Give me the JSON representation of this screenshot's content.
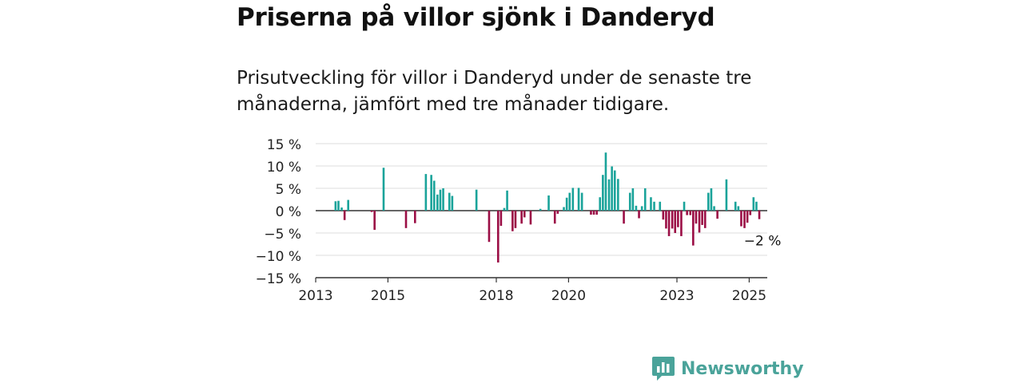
{
  "header": {
    "title": "Priserna på villor sjönk i Danderyd",
    "subtitle": "Prisutveckling för villor i Danderyd under de senaste tre månaderna, jämfört med tre månader tidigare."
  },
  "brand": {
    "name": "Newsworthy",
    "icon": "newsworthy-logo-icon",
    "color": "#4aa39a"
  },
  "colors": {
    "positive": "#1aa39a",
    "negative": "#9b0e45",
    "grid": "#dddddd",
    "axis": "#333333"
  },
  "chart_data": {
    "type": "bar",
    "y_unit": "%",
    "ylim": [
      -15,
      15
    ],
    "y_ticks": [
      {
        "value": 15,
        "label": "15 %"
      },
      {
        "value": 10,
        "label": "10 %"
      },
      {
        "value": 5,
        "label": "5 %"
      },
      {
        "value": 0,
        "label": "0 %"
      },
      {
        "value": -5,
        "label": "−5 %"
      },
      {
        "value": -10,
        "label": "−10 %"
      },
      {
        "value": -15,
        "label": "−15 %"
      }
    ],
    "x_ticks": [
      {
        "value": 2013,
        "label": "2013"
      },
      {
        "value": 2015,
        "label": "2015"
      },
      {
        "value": 2018,
        "label": "2018"
      },
      {
        "value": 2020,
        "label": "2020"
      },
      {
        "value": 2023,
        "label": "2023"
      },
      {
        "value": 2025,
        "label": "2025"
      }
    ],
    "xlim": [
      2013,
      2025.5
    ],
    "grid": true,
    "last_value_label": "−2 %",
    "points": [
      {
        "x": 2013.55,
        "y": 2.1
      },
      {
        "x": 2013.63,
        "y": 2.2
      },
      {
        "x": 2013.72,
        "y": 0.7
      },
      {
        "x": 2013.8,
        "y": -2.1
      },
      {
        "x": 2013.9,
        "y": 2.4
      },
      {
        "x": 2014.55,
        "y": -0.3
      },
      {
        "x": 2014.63,
        "y": -4.3
      },
      {
        "x": 2014.88,
        "y": 9.6
      },
      {
        "x": 2015.5,
        "y": -3.9
      },
      {
        "x": 2015.75,
        "y": -2.8
      },
      {
        "x": 2016.05,
        "y": 8.2
      },
      {
        "x": 2016.2,
        "y": 8.0
      },
      {
        "x": 2016.28,
        "y": 6.7
      },
      {
        "x": 2016.37,
        "y": 3.6
      },
      {
        "x": 2016.45,
        "y": 4.7
      },
      {
        "x": 2016.53,
        "y": 5.0
      },
      {
        "x": 2016.7,
        "y": 4.0
      },
      {
        "x": 2016.78,
        "y": 3.3
      },
      {
        "x": 2017.45,
        "y": 4.7
      },
      {
        "x": 2017.8,
        "y": -7.0
      },
      {
        "x": 2018.05,
        "y": -11.6
      },
      {
        "x": 2018.13,
        "y": -3.4
      },
      {
        "x": 2018.22,
        "y": 0.6
      },
      {
        "x": 2018.3,
        "y": 4.5
      },
      {
        "x": 2018.45,
        "y": -4.6
      },
      {
        "x": 2018.53,
        "y": -3.9
      },
      {
        "x": 2018.7,
        "y": -2.9
      },
      {
        "x": 2018.78,
        "y": -1.5
      },
      {
        "x": 2018.95,
        "y": -3.1
      },
      {
        "x": 2019.22,
        "y": 0.4
      },
      {
        "x": 2019.45,
        "y": 3.4
      },
      {
        "x": 2019.62,
        "y": -2.9
      },
      {
        "x": 2019.7,
        "y": -0.7
      },
      {
        "x": 2019.87,
        "y": 0.8
      },
      {
        "x": 2019.95,
        "y": 2.9
      },
      {
        "x": 2020.03,
        "y": 4.0
      },
      {
        "x": 2020.12,
        "y": 5.1
      },
      {
        "x": 2020.28,
        "y": 5.1
      },
      {
        "x": 2020.37,
        "y": 4.0
      },
      {
        "x": 2020.62,
        "y": -0.9
      },
      {
        "x": 2020.7,
        "y": -0.9
      },
      {
        "x": 2020.78,
        "y": -0.9
      },
      {
        "x": 2020.87,
        "y": 3.0
      },
      {
        "x": 2020.95,
        "y": 8.0
      },
      {
        "x": 2021.03,
        "y": 13.0
      },
      {
        "x": 2021.12,
        "y": 7.0
      },
      {
        "x": 2021.2,
        "y": 9.9
      },
      {
        "x": 2021.28,
        "y": 9.0
      },
      {
        "x": 2021.37,
        "y": 7.1
      },
      {
        "x": 2021.53,
        "y": -2.9
      },
      {
        "x": 2021.7,
        "y": 4.0
      },
      {
        "x": 2021.78,
        "y": 5.0
      },
      {
        "x": 2021.87,
        "y": 1.1
      },
      {
        "x": 2021.95,
        "y": -1.7
      },
      {
        "x": 2022.03,
        "y": 1.0
      },
      {
        "x": 2022.12,
        "y": 5.0
      },
      {
        "x": 2022.28,
        "y": 3.0
      },
      {
        "x": 2022.37,
        "y": 2.0
      },
      {
        "x": 2022.53,
        "y": 2.0
      },
      {
        "x": 2022.62,
        "y": -2.0
      },
      {
        "x": 2022.7,
        "y": -4.0
      },
      {
        "x": 2022.78,
        "y": -5.7
      },
      {
        "x": 2022.87,
        "y": -4.0
      },
      {
        "x": 2022.95,
        "y": -5.0
      },
      {
        "x": 2023.03,
        "y": -3.7
      },
      {
        "x": 2023.12,
        "y": -5.7
      },
      {
        "x": 2023.2,
        "y": 2.0
      },
      {
        "x": 2023.28,
        "y": -1.0
      },
      {
        "x": 2023.37,
        "y": -1.0
      },
      {
        "x": 2023.45,
        "y": -7.8
      },
      {
        "x": 2023.53,
        "y": -2.9
      },
      {
        "x": 2023.62,
        "y": -4.9
      },
      {
        "x": 2023.7,
        "y": -3.2
      },
      {
        "x": 2023.78,
        "y": -3.9
      },
      {
        "x": 2023.87,
        "y": 4.0
      },
      {
        "x": 2023.95,
        "y": 5.0
      },
      {
        "x": 2024.03,
        "y": 1.0
      },
      {
        "x": 2024.12,
        "y": -1.8
      },
      {
        "x": 2024.37,
        "y": 7.0
      },
      {
        "x": 2024.62,
        "y": 2.0
      },
      {
        "x": 2024.7,
        "y": 1.0
      },
      {
        "x": 2024.78,
        "y": -3.5
      },
      {
        "x": 2024.87,
        "y": -3.9
      },
      {
        "x": 2024.95,
        "y": -2.7
      },
      {
        "x": 2025.03,
        "y": -1.0
      },
      {
        "x": 2025.12,
        "y": 3.0
      },
      {
        "x": 2025.2,
        "y": 2.0
      },
      {
        "x": 2025.28,
        "y": -1.9
      }
    ]
  }
}
